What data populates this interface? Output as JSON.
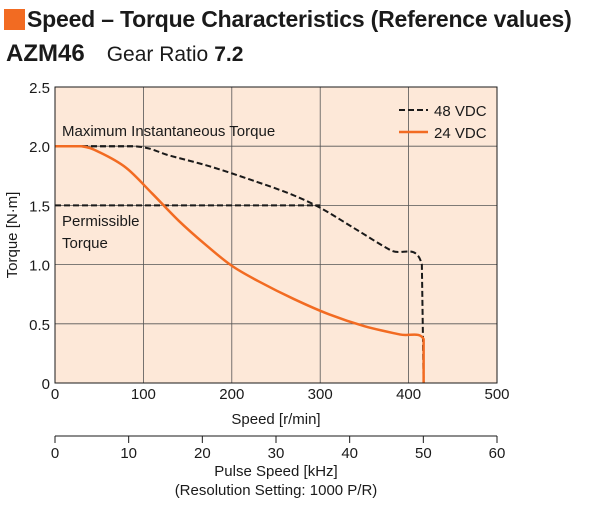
{
  "header": {
    "title": "Speed – Torque Characteristics (Reference values)",
    "title_color": "#f26b22",
    "model": "AZM46",
    "ratio_label": "Gear Ratio",
    "ratio_value": "7.2"
  },
  "chart_data": {
    "type": "line",
    "xlabel": "Speed [r/min]",
    "ylabel": "Torque [N·m]",
    "xlim": [
      0,
      500
    ],
    "ylim": [
      0,
      2.5
    ],
    "x_ticks": [
      "0",
      "100",
      "200",
      "300",
      "400",
      "500"
    ],
    "y_ticks": [
      "0",
      "0.5",
      "1.0",
      "1.5",
      "2.0",
      "2.5"
    ],
    "grid": true,
    "background_color": "#fde8d8",
    "legend": "top-right",
    "secondary_axis": {
      "label_line1": "Pulse Speed [kHz]",
      "label_line2": "(Resolution Setting: 1000 P/R)",
      "range": [
        0,
        60
      ],
      "ticks": [
        "0",
        "10",
        "20",
        "30",
        "40",
        "50",
        "60"
      ]
    },
    "series": [
      {
        "name": "48 VDC",
        "style": "dashed",
        "color": "#1a1a1a",
        "points": [
          [
            0,
            2.0
          ],
          [
            90,
            2.0
          ],
          [
            130,
            1.92
          ],
          [
            175,
            1.83
          ],
          [
            220,
            1.72
          ],
          [
            265,
            1.6
          ],
          [
            300,
            1.48
          ],
          [
            340,
            1.3
          ],
          [
            380,
            1.12
          ],
          [
            415,
            1.0
          ],
          [
            417,
            0.0
          ]
        ]
      },
      {
        "name": "24 VDC",
        "color": "#f26b22",
        "points": [
          [
            0,
            2.0
          ],
          [
            30,
            2.0
          ],
          [
            50,
            1.95
          ],
          [
            80,
            1.82
          ],
          [
            110,
            1.6
          ],
          [
            140,
            1.37
          ],
          [
            170,
            1.17
          ],
          [
            200,
            0.99
          ],
          [
            230,
            0.86
          ],
          [
            270,
            0.71
          ],
          [
            310,
            0.58
          ],
          [
            350,
            0.48
          ],
          [
            390,
            0.41
          ],
          [
            417,
            0.37
          ],
          [
            417,
            0.0
          ]
        ]
      }
    ],
    "annotations": {
      "max_torque": {
        "text": "Maximum Instantaneous Torque",
        "value": 2.0
      },
      "permissible_torque": {
        "line1": "Permissible",
        "line2": "Torque",
        "value": 1.5
      }
    }
  }
}
